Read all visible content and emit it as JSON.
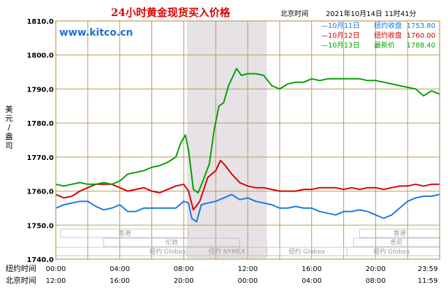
{
  "header": {
    "title": "24小时黄金现货买入价格",
    "location": "北京时间",
    "datetime": "2021年10月14日 11时41分",
    "site": "www.kitco.cn"
  },
  "colors": {
    "frame": "#b99a5a",
    "shade": "#e6e2e6",
    "series": [
      "#1b78e0",
      "#d40000",
      "#00a000"
    ]
  },
  "chart_data": {
    "type": "line",
    "title": "24小时黄金现货买入价格",
    "ylabel": "美元/盎司",
    "ylim": [
      1740,
      1810
    ],
    "yticks": [
      {
        "value": 1810,
        "label": "1810.0"
      },
      {
        "value": 1800,
        "label": "1800.0"
      },
      {
        "value": 1790,
        "label": "1790.0"
      },
      {
        "value": 1780,
        "label": "1780.0"
      },
      {
        "value": 1770,
        "label": "1770.0"
      },
      {
        "value": 1760,
        "label": "1760.0"
      },
      {
        "value": 1750,
        "label": "1750.0"
      },
      {
        "value": 1740,
        "label": "1740.0"
      }
    ],
    "xlim": [
      0,
      24
    ],
    "xaxis_rows": [
      {
        "name": "纽约时间",
        "ticks": [
          {
            "h": 0,
            "label": "00:00"
          },
          {
            "h": 4,
            "label": "04:00"
          },
          {
            "h": 8,
            "label": "08:00"
          },
          {
            "h": 12,
            "label": "12:00"
          },
          {
            "h": 16,
            "label": "16:00"
          },
          {
            "h": 20,
            "label": "20:00"
          },
          {
            "h": 24,
            "label": "23:59"
          }
        ]
      },
      {
        "name": "北京时间",
        "ticks": [
          {
            "h": 0,
            "label": "12:00"
          },
          {
            "h": 4,
            "label": "16:00"
          },
          {
            "h": 8,
            "label": "20:00"
          },
          {
            "h": 12,
            "label": "00:00"
          },
          {
            "h": 16,
            "label": "04:00"
          },
          {
            "h": 20,
            "label": "08:00"
          },
          {
            "h": 24,
            "label": "11:59"
          }
        ]
      }
    ],
    "shaded_band": {
      "from": 8.2,
      "to": 13.2,
      "label": "纽约 NYMEX"
    },
    "markets": [
      {
        "name": "香港",
        "row": 1,
        "from": 0.3,
        "to": 8.3
      },
      {
        "name": "伦敦",
        "row": 2,
        "from": 3.0,
        "to": 11.5
      },
      {
        "name": "纽约 Globex",
        "row": 3,
        "from": 0,
        "to": 14.0
      },
      {
        "name": "纽约 NYMEX",
        "row": 3,
        "from": 8.2,
        "to": 13.2
      },
      {
        "name": "纽约 Globex",
        "row": 3,
        "from": 13.2,
        "to": 18.2
      },
      {
        "name": "香港",
        "row": 1,
        "from": 19.0,
        "to": 24.0
      },
      {
        "name": "悉尼",
        "row": 2,
        "from": 18.6,
        "to": 24.0
      },
      {
        "name": "纽约 Globex",
        "row": 3,
        "from": 18.0,
        "to": 24.0
      }
    ],
    "legend": [
      {
        "label": "—10月11日",
        "desc": "纽约收盘",
        "value": "1753.80"
      },
      {
        "label": "—10月12日",
        "desc": "纽约收盘",
        "value": "1760.00"
      },
      {
        "label": "—10月13日",
        "desc": "最新价",
        "value": "1788.40"
      }
    ],
    "series": [
      {
        "name": "10月11日",
        "color": "#1b78e0",
        "points": [
          [
            0,
            1755
          ],
          [
            0.5,
            1756
          ],
          [
            1,
            1756.5
          ],
          [
            1.5,
            1757
          ],
          [
            2,
            1757
          ],
          [
            2.5,
            1755.5
          ],
          [
            3,
            1754.5
          ],
          [
            3.5,
            1755
          ],
          [
            4,
            1756
          ],
          [
            4.5,
            1754
          ],
          [
            5,
            1754
          ],
          [
            5.5,
            1755
          ],
          [
            6,
            1755
          ],
          [
            6.5,
            1755
          ],
          [
            7,
            1755
          ],
          [
            7.5,
            1755
          ],
          [
            8,
            1757
          ],
          [
            8.3,
            1756.5
          ],
          [
            8.5,
            1752
          ],
          [
            8.8,
            1751
          ],
          [
            9.1,
            1756
          ],
          [
            9.5,
            1756.5
          ],
          [
            10,
            1757
          ],
          [
            10.5,
            1758
          ],
          [
            11,
            1759
          ],
          [
            11.5,
            1757.5
          ],
          [
            12,
            1758
          ],
          [
            12.5,
            1757
          ],
          [
            13,
            1756.5
          ],
          [
            13.5,
            1756
          ],
          [
            14,
            1755
          ],
          [
            14.5,
            1755
          ],
          [
            15,
            1755.5
          ],
          [
            15.5,
            1755
          ],
          [
            16,
            1755
          ],
          [
            16.5,
            1754
          ],
          [
            17,
            1753.5
          ],
          [
            17.5,
            1753
          ],
          [
            18,
            1754
          ],
          [
            18.5,
            1754
          ],
          [
            19,
            1754.5
          ],
          [
            19.5,
            1754
          ],
          [
            20,
            1753
          ],
          [
            20.5,
            1752
          ],
          [
            21,
            1753
          ],
          [
            21.5,
            1755
          ],
          [
            22,
            1757
          ],
          [
            22.5,
            1758
          ],
          [
            23,
            1758.5
          ],
          [
            23.5,
            1758.5
          ],
          [
            24,
            1759
          ]
        ]
      },
      {
        "name": "10月12日",
        "color": "#d40000",
        "points": [
          [
            0,
            1759
          ],
          [
            0.5,
            1758
          ],
          [
            1,
            1758.5
          ],
          [
            1.5,
            1760
          ],
          [
            2,
            1761
          ],
          [
            2.5,
            1762
          ],
          [
            3,
            1762
          ],
          [
            3.5,
            1762
          ],
          [
            4,
            1761
          ],
          [
            4.5,
            1760
          ],
          [
            5,
            1760.5
          ],
          [
            5.5,
            1761
          ],
          [
            6,
            1760
          ],
          [
            6.5,
            1759.5
          ],
          [
            7,
            1760.5
          ],
          [
            7.5,
            1761.5
          ],
          [
            8,
            1762
          ],
          [
            8.3,
            1760
          ],
          [
            8.6,
            1754.5
          ],
          [
            9,
            1757
          ],
          [
            9.5,
            1764
          ],
          [
            10,
            1766
          ],
          [
            10.3,
            1769
          ],
          [
            10.6,
            1767.5
          ],
          [
            11,
            1765
          ],
          [
            11.5,
            1762.5
          ],
          [
            12,
            1761.5
          ],
          [
            12.5,
            1761
          ],
          [
            13,
            1761
          ],
          [
            13.5,
            1760.5
          ],
          [
            14,
            1760
          ],
          [
            14.5,
            1760
          ],
          [
            15,
            1760
          ],
          [
            15.5,
            1760.5
          ],
          [
            16,
            1760.5
          ],
          [
            16.5,
            1761
          ],
          [
            17,
            1761
          ],
          [
            17.5,
            1761
          ],
          [
            18,
            1760.5
          ],
          [
            18.5,
            1761
          ],
          [
            19,
            1760.5
          ],
          [
            19.5,
            1761
          ],
          [
            20,
            1761
          ],
          [
            20.5,
            1760.5
          ],
          [
            21,
            1761
          ],
          [
            21.5,
            1761.5
          ],
          [
            22,
            1761.5
          ],
          [
            22.5,
            1762
          ],
          [
            23,
            1761.5
          ],
          [
            23.5,
            1762
          ],
          [
            24,
            1762
          ]
        ]
      },
      {
        "name": "10月13日",
        "color": "#00a000",
        "points": [
          [
            0,
            1762
          ],
          [
            0.5,
            1761.5
          ],
          [
            1,
            1762
          ],
          [
            1.5,
            1762.5
          ],
          [
            2,
            1762
          ],
          [
            2.5,
            1762
          ],
          [
            3,
            1762.5
          ],
          [
            3.5,
            1762
          ],
          [
            4,
            1763
          ],
          [
            4.5,
            1765
          ],
          [
            5,
            1765.5
          ],
          [
            5.5,
            1766
          ],
          [
            6,
            1767
          ],
          [
            6.5,
            1767.5
          ],
          [
            7,
            1768.5
          ],
          [
            7.5,
            1770
          ],
          [
            7.8,
            1774
          ],
          [
            8.1,
            1776.5
          ],
          [
            8.3,
            1772
          ],
          [
            8.6,
            1760.5
          ],
          [
            8.9,
            1759.5
          ],
          [
            9.2,
            1763
          ],
          [
            9.6,
            1768
          ],
          [
            9.9,
            1778
          ],
          [
            10.2,
            1785
          ],
          [
            10.5,
            1786
          ],
          [
            10.8,
            1791
          ],
          [
            11,
            1793
          ],
          [
            11.3,
            1796
          ],
          [
            11.6,
            1794
          ],
          [
            12,
            1794.5
          ],
          [
            12.5,
            1794.5
          ],
          [
            13,
            1794
          ],
          [
            13.5,
            1791
          ],
          [
            14,
            1790
          ],
          [
            14.5,
            1791.5
          ],
          [
            15,
            1792
          ],
          [
            15.5,
            1792
          ],
          [
            16,
            1793
          ],
          [
            16.5,
            1792.5
          ],
          [
            17,
            1793
          ],
          [
            17.5,
            1793
          ],
          [
            18,
            1793
          ],
          [
            18.5,
            1793
          ],
          [
            19,
            1793
          ],
          [
            19.5,
            1792.5
          ],
          [
            20,
            1792.5
          ],
          [
            20.5,
            1792
          ],
          [
            21,
            1791.5
          ],
          [
            21.5,
            1791
          ],
          [
            22,
            1790.5
          ],
          [
            22.5,
            1790
          ],
          [
            23,
            1788
          ],
          [
            23.5,
            1789.5
          ],
          [
            24,
            1788.5
          ]
        ]
      }
    ]
  }
}
